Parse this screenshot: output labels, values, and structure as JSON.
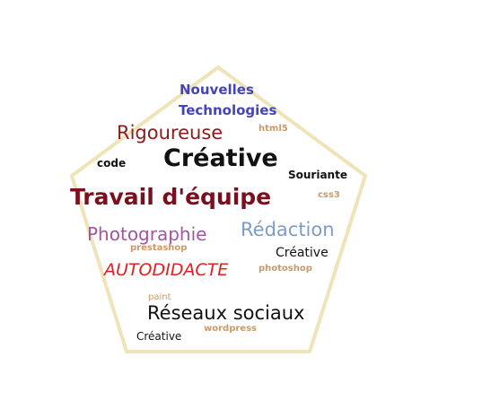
{
  "cloud": {
    "outline_color": "#efe3b8",
    "words": [
      {
        "text": "Nouvelles",
        "color": "#4444b8"
      },
      {
        "text": "Technologies",
        "color": "#4444b8"
      },
      {
        "text": "html5",
        "color": "#c89a6a"
      },
      {
        "text": "Rigoureuse",
        "color": "#8b1a1a"
      },
      {
        "text": "code",
        "color": "#111111"
      },
      {
        "text": "Créative",
        "color": "#111111"
      },
      {
        "text": "Souriante",
        "color": "#111111"
      },
      {
        "text": "css3",
        "color": "#c89a6a"
      },
      {
        "text": "Travail d'équipe",
        "color": "#7a0f1f"
      },
      {
        "text": "Photographie",
        "color": "#a255a2"
      },
      {
        "text": "Rédaction",
        "color": "#7e9cc4"
      },
      {
        "text": "prestashop",
        "color": "#c89a6a"
      },
      {
        "text": "Créative",
        "color": "#111111"
      },
      {
        "text": "AUTODIDACTE",
        "color": "#e02020"
      },
      {
        "text": "photoshop",
        "color": "#c89a6a"
      },
      {
        "text": "paint",
        "color": "#c89a6a"
      },
      {
        "text": "Réseaux sociaux",
        "color": "#111111"
      },
      {
        "text": "wordpress",
        "color": "#c89a6a"
      },
      {
        "text": "Créative",
        "color": "#111111"
      }
    ]
  }
}
